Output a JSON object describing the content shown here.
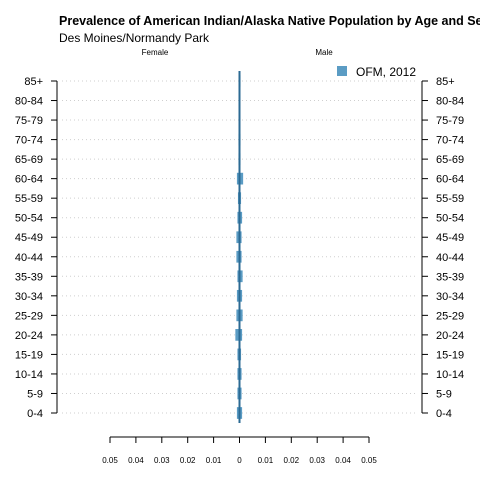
{
  "chart_data": {
    "type": "bar",
    "orientation": "horizontal-pyramid",
    "title": "Prevalence of American Indian/Alaska Native Population by Age and Sex",
    "subtitle": "Des Moines/Normandy Park",
    "left_label": "Female",
    "right_label": "Male",
    "categories": [
      "0-4",
      "5-9",
      "10-14",
      "15-19",
      "20-24",
      "25-29",
      "30-34",
      "35-39",
      "40-44",
      "45-49",
      "50-54",
      "55-59",
      "60-64",
      "65-69",
      "70-74",
      "75-79",
      "80-84",
      "85+"
    ],
    "series": [
      {
        "name": "OFM, 2012",
        "color": "#5b9cc4",
        "female": [
          0.001,
          0.0008,
          0.0008,
          0.0008,
          0.0016,
          0.0012,
          0.001,
          0.0008,
          0.0012,
          0.0012,
          0.0008,
          0.0006,
          0.001,
          0.0004,
          0.0004,
          0.0003,
          0.0003,
          0.0003
        ],
        "male": [
          0.001,
          0.0008,
          0.0008,
          0.0006,
          0.001,
          0.0012,
          0.001,
          0.0012,
          0.0008,
          0.0008,
          0.001,
          0.0006,
          0.0014,
          0.0004,
          0.0004,
          0.0003,
          0.0003,
          0.0004
        ]
      }
    ],
    "xticks": [
      "0.05",
      "0.04",
      "0.03",
      "0.02",
      "0.01",
      "0",
      "0.01",
      "0.02",
      "0.03",
      "0.04",
      "0.05"
    ],
    "xlim": [
      -0.05,
      0.05
    ],
    "grid": "dotted horizontal",
    "legend": "top-right"
  }
}
